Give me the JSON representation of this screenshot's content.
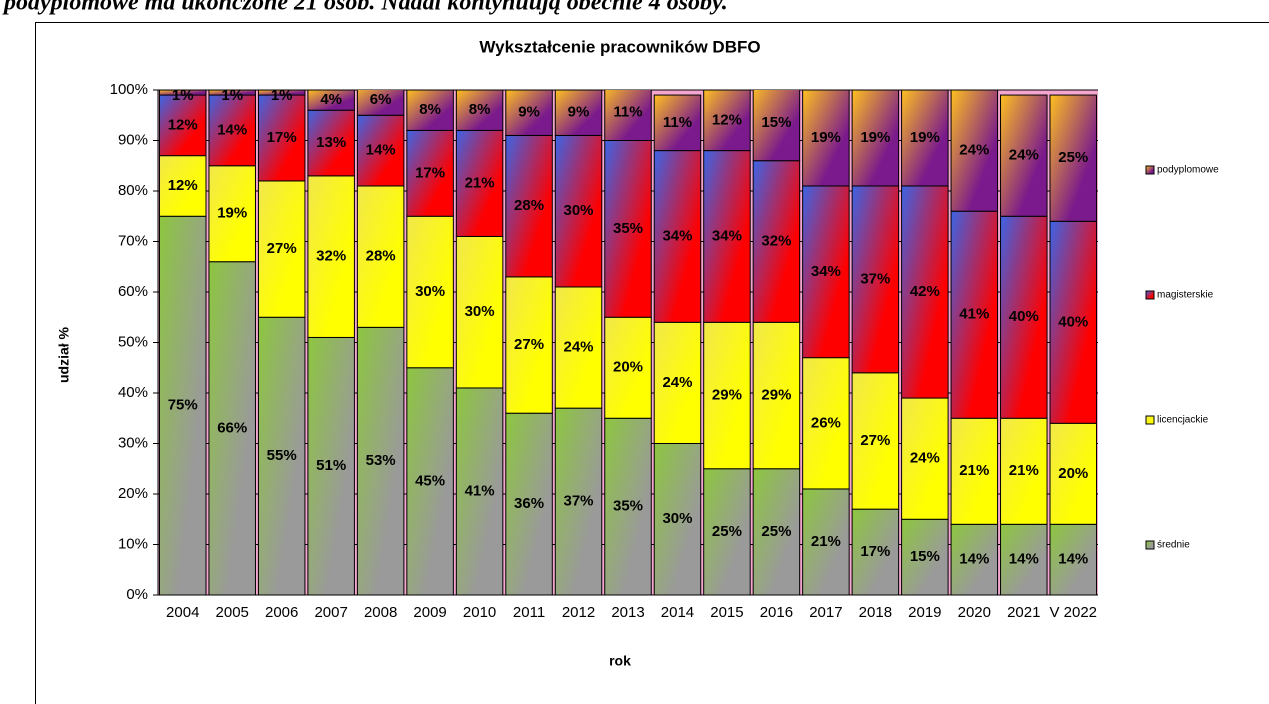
{
  "header_text": "podyplomowe ma ukończone 21 osób. Nadal kontynuują obecnie 4 osoby.",
  "chart_data": {
    "type": "stacked_bar",
    "title": "Wykształcenie pracowników DBFO",
    "x_label": "rok",
    "y_label": "udział %",
    "categories": [
      "2004",
      "2005",
      "2006",
      "2007",
      "2008",
      "2009",
      "2010",
      "2011",
      "2012",
      "2013",
      "2014",
      "2015",
      "2016",
      "2017",
      "2018",
      "2019",
      "2020",
      "2021",
      "V 2022"
    ],
    "series": [
      {
        "name": "średnie",
        "color": "#8dc63f",
        "color2": "#9a9a9a",
        "values": [
          75,
          66,
          55,
          51,
          53,
          45,
          41,
          36,
          37,
          35,
          30,
          25,
          25,
          21,
          17,
          15,
          14,
          14,
          14
        ],
        "value_labels": [
          "75%",
          "66%",
          "55%",
          "51%",
          "53%",
          "45%",
          "41%",
          "36%",
          "37%",
          "35%",
          "30%",
          "25%",
          "25%",
          "21%",
          "17%",
          "15%",
          "14%",
          "14%",
          "14%"
        ]
      },
      {
        "name": "licencjackie",
        "color": "#ffff00",
        "color2": "#f2e84a",
        "values": [
          12,
          19,
          27,
          32,
          28,
          30,
          30,
          27,
          24,
          20,
          24,
          29,
          29,
          26,
          27,
          24,
          21,
          21,
          20
        ],
        "value_labels": [
          "12%",
          "19%",
          "27%",
          "32%",
          "28%",
          "30%",
          "30%",
          "27%",
          "24%",
          "20%",
          "24%",
          "29%",
          "29%",
          "26%",
          "27%",
          "24%",
          "21%",
          "21%",
          "20%"
        ]
      },
      {
        "name": "magisterskie",
        "color": "#ff0000",
        "color2": "#3c64e6",
        "values": [
          12,
          14,
          17,
          13,
          14,
          17,
          21,
          28,
          30,
          35,
          34,
          34,
          32,
          34,
          37,
          42,
          41,
          40,
          40
        ],
        "value_labels": [
          "12%",
          "14%",
          "17%",
          "13%",
          "14%",
          "17%",
          "21%",
          "28%",
          "30%",
          "35%",
          "34%",
          "34%",
          "32%",
          "34%",
          "37%",
          "42%",
          "41%",
          "40%",
          "40%"
        ]
      },
      {
        "name": "podyplomowe",
        "color": "#7a1a8c",
        "color2": "#ffc020",
        "values": [
          1,
          1,
          1,
          4,
          6,
          8,
          8,
          9,
          9,
          11,
          11,
          12,
          15,
          19,
          19,
          19,
          24,
          24,
          25
        ],
        "value_labels": [
          "1%",
          "1%",
          "1%",
          "4%",
          "6%",
          "8%",
          "8%",
          "9%",
          "9%",
          "11%",
          "11%",
          "12%",
          "15%",
          "19%",
          "19%",
          "19%",
          "24%",
          "24%",
          "25%"
        ]
      }
    ],
    "ylim": [
      0,
      100
    ],
    "yticks": [
      {
        "value": 0,
        "label": "0%"
      },
      {
        "value": 10,
        "label": "10%"
      },
      {
        "value": 20,
        "label": "20%"
      },
      {
        "value": 30,
        "label": "30%"
      },
      {
        "value": 40,
        "label": "40%"
      },
      {
        "value": 50,
        "label": "50%"
      },
      {
        "value": 60,
        "label": "60%"
      },
      {
        "value": 70,
        "label": "70%"
      },
      {
        "value": 80,
        "label": "80%"
      },
      {
        "value": 90,
        "label": "90%"
      },
      {
        "value": 100,
        "label": "100%"
      }
    ],
    "grid": true,
    "legend": "right"
  }
}
